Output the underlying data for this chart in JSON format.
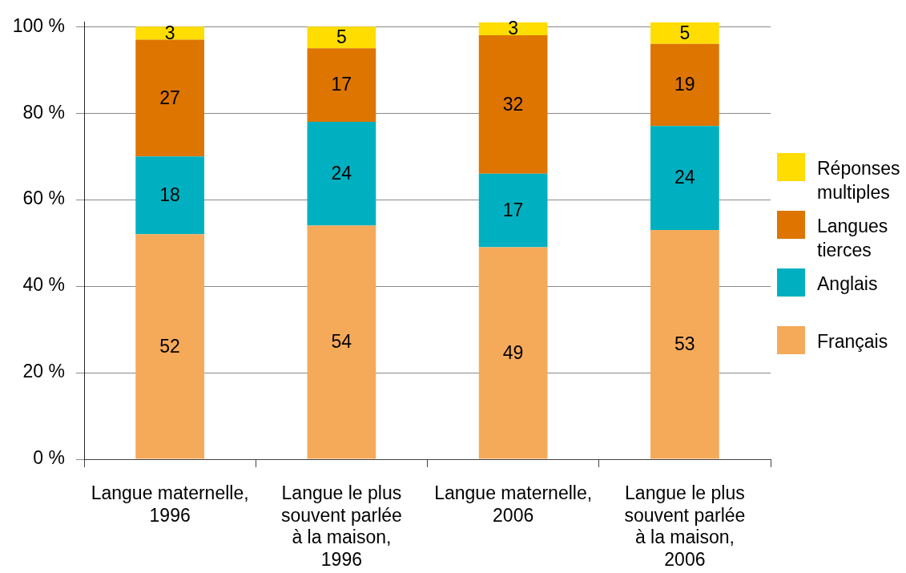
{
  "chart_data": {
    "type": "bar",
    "stacked": true,
    "categories": [
      "Langue maternelle,\n1996",
      "Langue le plus\nsouvent parlée\nà la maison,\n1996",
      "Langue maternelle,\n2006",
      "Langue le plus\nsouvent parlée\nà la maison,\n2006"
    ],
    "series": [
      {
        "name": "Français",
        "color": "#f5aa5a",
        "values": [
          52,
          54,
          49,
          53
        ]
      },
      {
        "name": "Anglais",
        "color": "#00b0c0",
        "values": [
          18,
          24,
          17,
          24
        ]
      },
      {
        "name": "Langues tierces",
        "color": "#dd7500",
        "values": [
          27,
          17,
          32,
          19
        ]
      },
      {
        "name": "Réponses multiples",
        "color": "#ffdd00",
        "values": [
          3,
          5,
          3,
          5
        ]
      }
    ],
    "ylim": [
      0,
      101
    ],
    "yticks": [
      {
        "value": 0,
        "label": "0 %"
      },
      {
        "value": 20,
        "label": "20 %"
      },
      {
        "value": 40,
        "label": "40 %"
      },
      {
        "value": 60,
        "label": "60 %"
      },
      {
        "value": 80,
        "label": "80 %"
      },
      {
        "value": 100,
        "label": "100 %"
      }
    ],
    "grid": "y",
    "legend": "right",
    "data_labels": true
  }
}
